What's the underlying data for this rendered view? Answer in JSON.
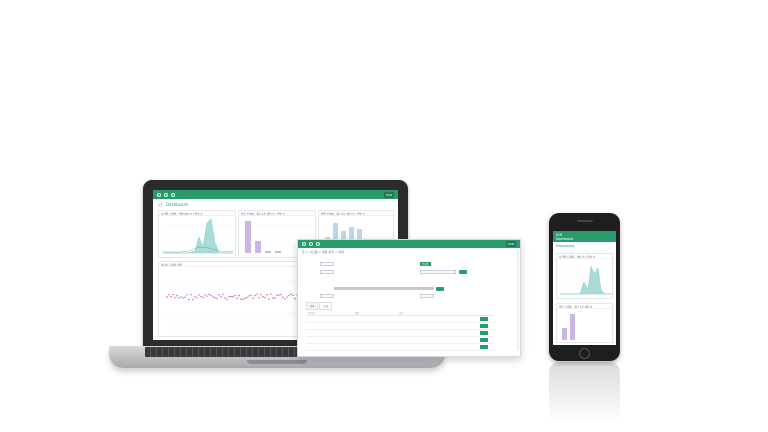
{
  "laptop": {
    "app_brand": "KCB",
    "dashboard_title": "Dashboard",
    "panels": [
      {
        "title": "시간별 트래픽 · 전체 세션 수 / 접속 수"
      },
      {
        "title": "일간 트래픽 · 최근 1주 세션 수 / 접속 수"
      },
      {
        "title": "월별 트래픽 · 최근 1년 세션 수 / 접속 수"
      },
      {
        "title": "실시간 트래픽 현황"
      }
    ]
  },
  "browser": {
    "app_brand": "KCB",
    "breadcrumb": "홈 > 시스템 > 설정 관리 > 상세",
    "status_badge": "운영중",
    "tabs": [
      "목록",
      "상세"
    ],
    "table_headers": [
      "항목명",
      "설명",
      "관리"
    ]
  },
  "phone": {
    "app_brand": "KCB",
    "app_name": "Dashboard",
    "dashboard_title": "Dashboard",
    "panels": [
      {
        "title": "시간별 트래픽 · 세션 수 / 접속 수"
      },
      {
        "title": "일간 트래픽 · 최근 1주 세션 수"
      }
    ]
  },
  "colors": {
    "accent": "#2a9b6c",
    "chart_area": "#a8dcd6",
    "chart_bar": "#c9b6e6",
    "chart_bar_alt": "#bcd5ef",
    "scatter": "#e0457b"
  }
}
